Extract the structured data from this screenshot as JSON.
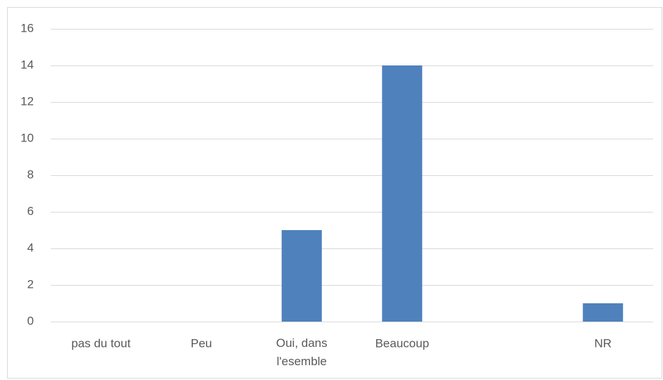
{
  "chart_data": {
    "type": "bar",
    "categories": [
      "pas du tout",
      "Peu",
      "Oui, dans l'esemble",
      "Beaucoup",
      null,
      "NR"
    ],
    "values": [
      0,
      0,
      5,
      14,
      0,
      1
    ],
    "color": "#4f81bd",
    "ylim": [
      0,
      16
    ],
    "yticks": [
      0,
      2,
      4,
      6,
      8,
      10,
      12,
      14,
      16
    ],
    "grid": true
  }
}
